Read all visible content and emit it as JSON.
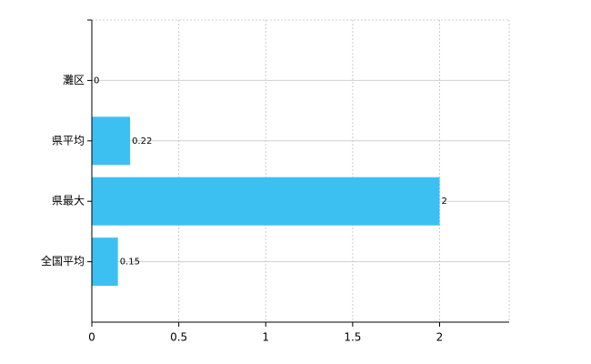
{
  "chart_data": {
    "type": "bar",
    "orientation": "horizontal",
    "categories": [
      "灘区",
      "県平均",
      "県最大",
      "全国平均"
    ],
    "values": [
      0,
      0.22,
      2,
      0.15
    ],
    "color": "#3cc0f2",
    "xlim": [
      0,
      2.4
    ],
    "xticks": [
      0,
      0.5,
      1,
      1.5,
      2
    ],
    "grid": true
  }
}
